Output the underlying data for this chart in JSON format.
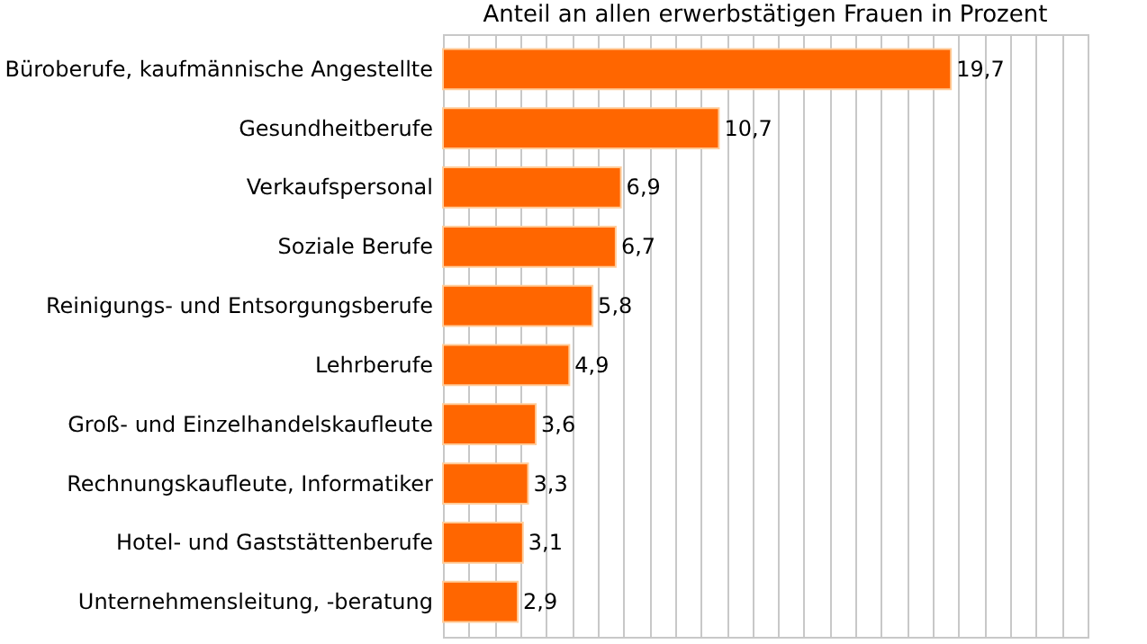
{
  "chart_data": {
    "type": "bar",
    "orientation": "horizontal",
    "title": "Anteil an allen erwerbstätigen Frauen in Prozent",
    "categories": [
      "Büroberufe, kaufmännische Angestellte",
      "Gesundheitberufe",
      "Verkaufspersonal",
      "Soziale Berufe",
      "Reinigungs- und Entsorgungsberufe",
      "Lehrberufe",
      "Groß- und Einzelhandelskaufleute",
      "Rechnungskaufleute, Informatiker",
      "Hotel- und Gaststättenberufe",
      "Unternehmensleitung, -beratung"
    ],
    "values": [
      19.7,
      10.7,
      6.9,
      6.7,
      5.8,
      4.9,
      3.6,
      3.3,
      3.1,
      2.9
    ],
    "value_labels": [
      "19,7",
      "10,7",
      "6,9",
      "6,7",
      "5,8",
      "4,9",
      "3,6",
      "3,3",
      "3,1",
      "2,9"
    ],
    "color": "#ff6600",
    "xlim": [
      0,
      25
    ],
    "grid": "x",
    "tick_labels": "y"
  }
}
